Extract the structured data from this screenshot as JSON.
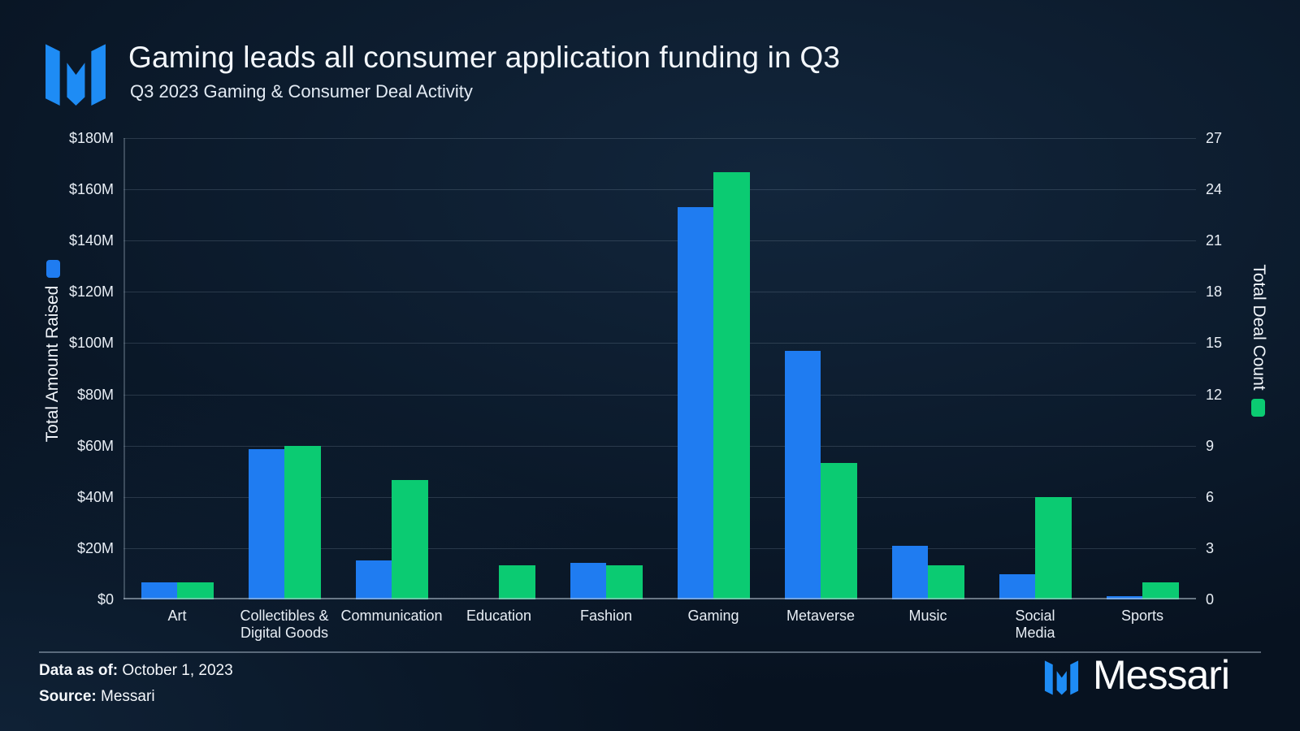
{
  "header": {
    "title": "Gaming leads all consumer application funding in Q3",
    "subtitle": "Q3 2023 Gaming & Consumer Deal Activity"
  },
  "chart_data": {
    "type": "bar",
    "title": "Gaming leads all consumer application funding in Q3",
    "subtitle": "Q3 2023 Gaming & Consumer Deal Activity",
    "categories": [
      "Art",
      "Collectibles &\nDigital Goods",
      "Communication",
      "Education",
      "Fashion",
      "Gaming",
      "Metaverse",
      "Music",
      "Social\nMedia",
      "Sports"
    ],
    "series": [
      {
        "name": "Total Amount Raised",
        "axis": "left",
        "unit": "USD millions",
        "color": "#1f7cf1",
        "values": [
          6.7,
          58.5,
          15.2,
          0,
          14.3,
          153,
          97,
          21,
          9.7,
          1.2
        ]
      },
      {
        "name": "Total Deal Count",
        "axis": "right",
        "unit": "deals",
        "color": "#0bcb72",
        "values": [
          1,
          9,
          7,
          2,
          2,
          25,
          8,
          2,
          6,
          1
        ]
      }
    ],
    "left_axis": {
      "label": "Total Amount Raised",
      "min": 0,
      "max": 180,
      "ticks": [
        "$180M",
        "$160M",
        "$140M",
        "$120M",
        "$100M",
        "$80M",
        "$60M",
        "$40M",
        "$20M",
        "$0"
      ]
    },
    "right_axis": {
      "label": "Total Deal Count",
      "min": 0,
      "max": 27,
      "ticks": [
        "27",
        "24",
        "21",
        "18",
        "15",
        "12",
        "9",
        "6",
        "3",
        "0"
      ]
    },
    "grid": true,
    "legend_position": "beside-axis-titles"
  },
  "footer": {
    "data_as_of_label": "Data as of:",
    "data_as_of_value": "October 1, 2023",
    "source_label": "Source:",
    "source_value": "Messari",
    "brand": "Messari"
  },
  "colors": {
    "amount_bar": "#1f7cf1",
    "deals_bar": "#0bcb72",
    "background": "#071220",
    "logo_blue": "#1e8cf5"
  }
}
